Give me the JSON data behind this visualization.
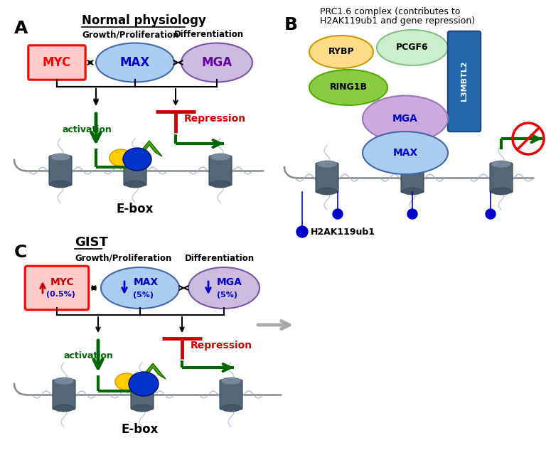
{
  "fig_width": 7.75,
  "fig_height": 6.47,
  "bg_color": "#ffffff",
  "panel_A": {
    "label": "A",
    "title": "Normal physiology",
    "MYC_fill": "#ffcccc",
    "MYC_edge": "#ff0000",
    "MAX_fill": "#aaccee",
    "MAX_edge": "#4466aa",
    "MGA_fill": "#ccbbdd",
    "MGA_edge": "#7755aa"
  },
  "panel_B": {
    "label": "B",
    "title_line1": "PRC1.6 complex (contributes to",
    "title_line2": "H2AK119ub1 and gene repression)",
    "RYBP_fill": "#ffdd88",
    "PCGF6_fill": "#cceecc",
    "RING1B_fill": "#88cc44",
    "L3MBTL2_fill": "#2266aa",
    "MGA_fill": "#ccaadd",
    "MAX_fill": "#aaccee"
  },
  "panel_C": {
    "label": "C",
    "title": "GIST",
    "MYC_fill": "#ffcccc",
    "MYC_edge": "#ff0000",
    "MAX_fill": "#aaccee",
    "MAX_edge": "#4466aa",
    "MGA_fill": "#ccbbdd",
    "MGA_edge": "#7755aa"
  }
}
